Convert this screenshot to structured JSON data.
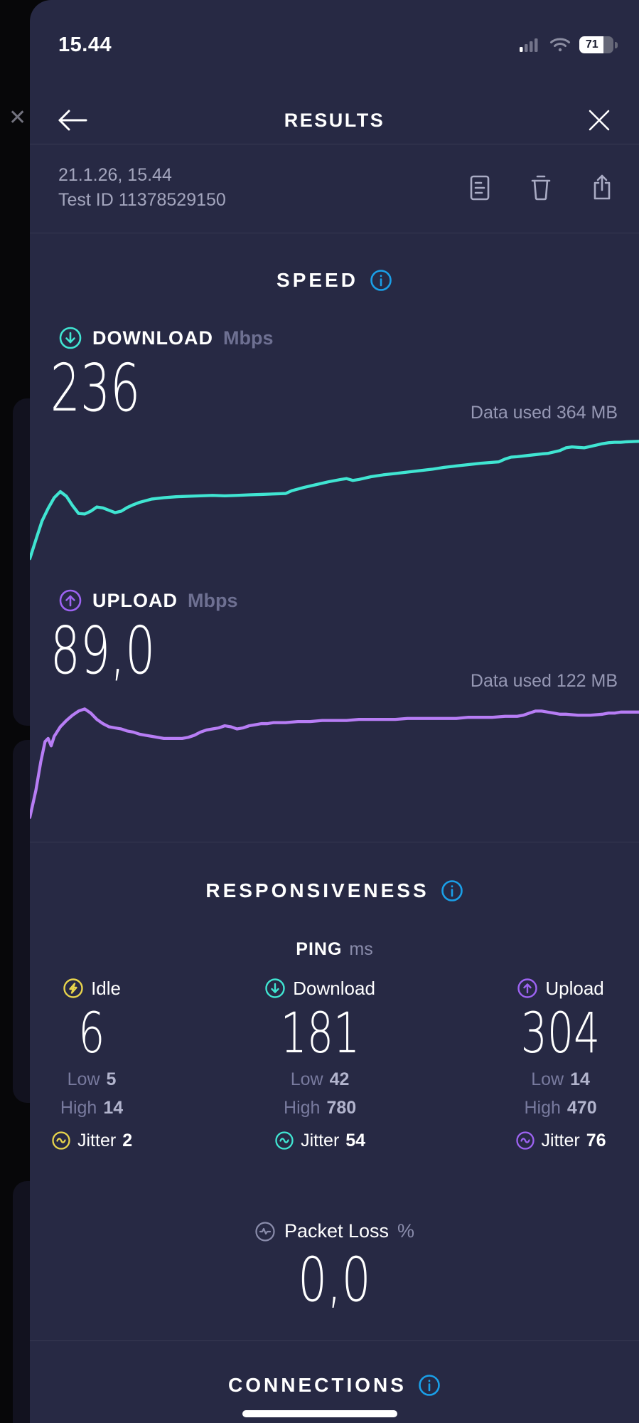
{
  "status_bar": {
    "time": "15.44",
    "battery_percent": "71",
    "icons": [
      "cellular-signal-icon",
      "wifi-icon",
      "battery-icon"
    ]
  },
  "header": {
    "title": "RESULTS",
    "back_icon": "arrow-left-icon",
    "close_icon": "close-x-icon"
  },
  "test_info": {
    "date_time": "21.1.26, 15.44",
    "test_id": "Test ID 11378529150",
    "action_icons": [
      "result-details-icon",
      "trash-icon",
      "share-icon"
    ]
  },
  "speed": {
    "title": "SPEED",
    "info_icon": "info-circle-icon",
    "download": {
      "label": "DOWNLOAD",
      "unit": "Mbps",
      "value": "236",
      "data_used": "Data used 364 MB",
      "icon": "arrow-down-circle-icon"
    },
    "upload": {
      "label": "UPLOAD",
      "unit": "Mbps",
      "value": "89,0",
      "data_used": "Data used 122 MB",
      "icon": "arrow-up-circle-icon"
    }
  },
  "responsiveness": {
    "title": "RESPONSIVENESS",
    "info_icon": "info-circle-icon",
    "ping_label": "PING",
    "ping_unit": "ms",
    "columns": [
      {
        "label": "Idle",
        "icon": "bolt-circle-icon",
        "value": "6",
        "low_label": "Low",
        "low_value": "5",
        "high_label": "High",
        "high_value": "14",
        "jitter_label": "Jitter",
        "jitter_value": "2",
        "accent": "#e8d44c"
      },
      {
        "label": "Download",
        "icon": "arrow-down-circle-icon",
        "value": "181",
        "low_label": "Low",
        "low_value": "42",
        "high_label": "High",
        "high_value": "780",
        "jitter_label": "Jitter",
        "jitter_value": "54",
        "accent": "#40e5d2"
      },
      {
        "label": "Upload",
        "icon": "arrow-up-circle-icon",
        "value": "304",
        "low_label": "Low",
        "low_value": "14",
        "high_label": "High",
        "high_value": "470",
        "jitter_label": "Jitter",
        "jitter_value": "76",
        "accent": "#a86df5"
      }
    ],
    "packet_loss": {
      "label": "Packet Loss",
      "unit": "%",
      "value": "0,0",
      "icon": "pulse-circle-icon"
    }
  },
  "connections": {
    "title": "CONNECTIONS",
    "info_icon": "info-circle-icon"
  },
  "colors": {
    "card_background": "#272944",
    "underlay_background": "#070709",
    "accent_download_teal": "#40e5d2",
    "accent_upload_purple_line": "#b77df5",
    "accent_upload_purple_icon": "#9d63f2",
    "accent_idle_yellow": "#e8d44c",
    "info_blue": "#1a9fe8",
    "text_primary": "#ffffff",
    "text_muted": "#9698b4",
    "text_dim": "#787a9e"
  },
  "chart_data": [
    {
      "name": "download",
      "type": "line",
      "title": "Download speed over test duration",
      "unit": "Mbps",
      "result_mbps": 236,
      "data_used_label": "Data used 364 MB",
      "color": "#40e5d2",
      "ylim": [
        0,
        280
      ],
      "grid": false,
      "axes_hidden": true,
      "points_x_percent_value_mbps": [
        [
          0,
          4
        ],
        [
          1,
          45
        ],
        [
          2,
          85
        ],
        [
          3,
          112
        ],
        [
          4,
          135
        ],
        [
          5,
          148
        ],
        [
          6,
          138
        ],
        [
          7,
          118
        ],
        [
          8,
          101
        ],
        [
          9,
          100
        ],
        [
          10,
          106
        ],
        [
          11,
          115
        ],
        [
          12,
          113
        ],
        [
          13,
          108
        ],
        [
          14,
          103
        ],
        [
          15,
          106
        ],
        [
          16,
          114
        ],
        [
          17,
          120
        ],
        [
          18,
          125
        ],
        [
          20,
          132
        ],
        [
          22,
          135
        ],
        [
          24,
          137
        ],
        [
          26,
          138
        ],
        [
          28,
          139
        ],
        [
          30,
          140
        ],
        [
          32,
          139
        ],
        [
          34,
          140
        ],
        [
          36,
          141
        ],
        [
          38,
          142
        ],
        [
          40,
          143
        ],
        [
          42,
          144
        ],
        [
          43,
          150
        ],
        [
          45,
          157
        ],
        [
          47,
          163
        ],
        [
          49,
          169
        ],
        [
          51,
          174
        ],
        [
          52,
          176
        ],
        [
          53,
          172
        ],
        [
          54,
          174
        ],
        [
          56,
          180
        ],
        [
          58,
          184
        ],
        [
          60,
          187
        ],
        [
          62,
          190
        ],
        [
          64,
          193
        ],
        [
          66,
          196
        ],
        [
          68,
          200
        ],
        [
          70,
          203
        ],
        [
          72,
          206
        ],
        [
          74,
          209
        ],
        [
          76,
          211
        ],
        [
          77,
          212
        ],
        [
          78,
          218
        ],
        [
          79,
          222
        ],
        [
          80,
          223
        ],
        [
          82,
          226
        ],
        [
          84,
          229
        ],
        [
          85,
          230
        ],
        [
          86,
          233
        ],
        [
          87,
          236
        ],
        [
          88,
          242
        ],
        [
          89,
          244
        ],
        [
          90,
          243
        ],
        [
          91,
          242
        ],
        [
          92,
          245
        ],
        [
          93,
          248
        ],
        [
          94,
          251
        ],
        [
          95,
          253
        ],
        [
          96,
          254
        ],
        [
          97,
          254
        ],
        [
          98,
          255
        ],
        [
          100,
          256
        ]
      ]
    },
    {
      "name": "upload",
      "type": "line",
      "title": "Upload speed over test duration",
      "unit": "Mbps",
      "result_mbps": 89.0,
      "data_used_label": "Data used 122 MB",
      "color": "#b77df5",
      "ylim": [
        0,
        115
      ],
      "grid": false,
      "axes_hidden": true,
      "points_x_percent_value_mbps": [
        [
          0,
          2
        ],
        [
          1,
          28
        ],
        [
          1.8,
          55
        ],
        [
          2.5,
          74
        ],
        [
          3,
          77
        ],
        [
          3.5,
          70
        ],
        [
          4,
          79
        ],
        [
          5,
          88
        ],
        [
          6,
          94
        ],
        [
          7,
          99
        ],
        [
          8,
          103
        ],
        [
          9,
          105
        ],
        [
          10,
          101
        ],
        [
          11,
          95
        ],
        [
          12,
          91
        ],
        [
          13,
          88
        ],
        [
          14,
          87
        ],
        [
          15,
          86
        ],
        [
          16,
          84
        ],
        [
          17,
          83
        ],
        [
          18,
          81
        ],
        [
          19,
          80
        ],
        [
          20,
          79
        ],
        [
          21,
          78
        ],
        [
          22,
          77
        ],
        [
          23,
          77
        ],
        [
          24,
          77
        ],
        [
          25,
          77
        ],
        [
          26,
          78
        ],
        [
          27,
          80
        ],
        [
          28,
          83
        ],
        [
          29,
          85
        ],
        [
          30,
          86
        ],
        [
          31,
          87
        ],
        [
          32,
          89
        ],
        [
          33,
          88
        ],
        [
          34,
          86
        ],
        [
          35,
          87
        ],
        [
          36,
          89
        ],
        [
          37,
          90
        ],
        [
          38,
          91
        ],
        [
          39,
          91
        ],
        [
          40,
          92
        ],
        [
          42,
          92
        ],
        [
          44,
          93
        ],
        [
          46,
          93
        ],
        [
          48,
          94
        ],
        [
          50,
          94
        ],
        [
          52,
          94
        ],
        [
          54,
          95
        ],
        [
          56,
          95
        ],
        [
          58,
          95
        ],
        [
          60,
          95
        ],
        [
          62,
          96
        ],
        [
          64,
          96
        ],
        [
          66,
          96
        ],
        [
          68,
          96
        ],
        [
          70,
          96
        ],
        [
          72,
          97
        ],
        [
          74,
          97
        ],
        [
          76,
          97
        ],
        [
          78,
          98
        ],
        [
          80,
          98
        ],
        [
          81,
          99
        ],
        [
          82,
          101
        ],
        [
          83,
          103
        ],
        [
          84,
          103
        ],
        [
          85,
          102
        ],
        [
          86,
          101
        ],
        [
          87,
          100
        ],
        [
          88,
          100
        ],
        [
          90,
          99
        ],
        [
          92,
          99
        ],
        [
          94,
          100
        ],
        [
          95,
          101
        ],
        [
          96,
          101
        ],
        [
          97,
          102
        ],
        [
          98,
          102
        ],
        [
          100,
          102
        ]
      ]
    }
  ]
}
